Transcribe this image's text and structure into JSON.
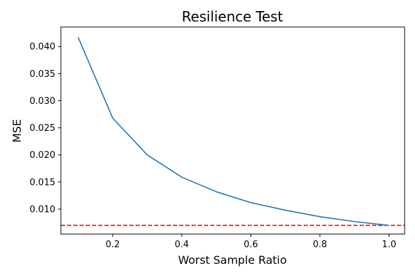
{
  "chart_data": {
    "type": "line",
    "title": "Resilience Test",
    "xlabel": "Worst Sample Ratio",
    "ylabel": "MSE",
    "xlim": [
      0.05,
      1.045
    ],
    "ylim": [
      0.0054,
      0.0436
    ],
    "x_ticks": [
      0.2,
      0.4,
      0.6,
      0.8,
      1.0
    ],
    "x_tick_labels": [
      "0.2",
      "0.4",
      "0.6",
      "0.8",
      "1.0"
    ],
    "y_ticks": [
      0.01,
      0.015,
      0.02,
      0.025,
      0.03,
      0.035,
      0.04
    ],
    "y_tick_labels": [
      "0.010",
      "0.015",
      "0.020",
      "0.025",
      "0.030",
      "0.035",
      "0.040"
    ],
    "grid": false,
    "legend": "none",
    "series": [
      {
        "x": [
          0.1,
          0.2,
          0.3,
          0.4,
          0.5,
          0.6,
          0.7,
          0.8,
          0.9,
          1.0
        ],
        "y": [
          0.0417,
          0.0268,
          0.02,
          0.0159,
          0.0132,
          0.0112,
          0.0098,
          0.0086,
          0.0077,
          0.007
        ],
        "color": "#1f77b4"
      }
    ],
    "reference_line": {
      "y": 0.007,
      "color": "#ff0000",
      "style": "dashed"
    }
  }
}
